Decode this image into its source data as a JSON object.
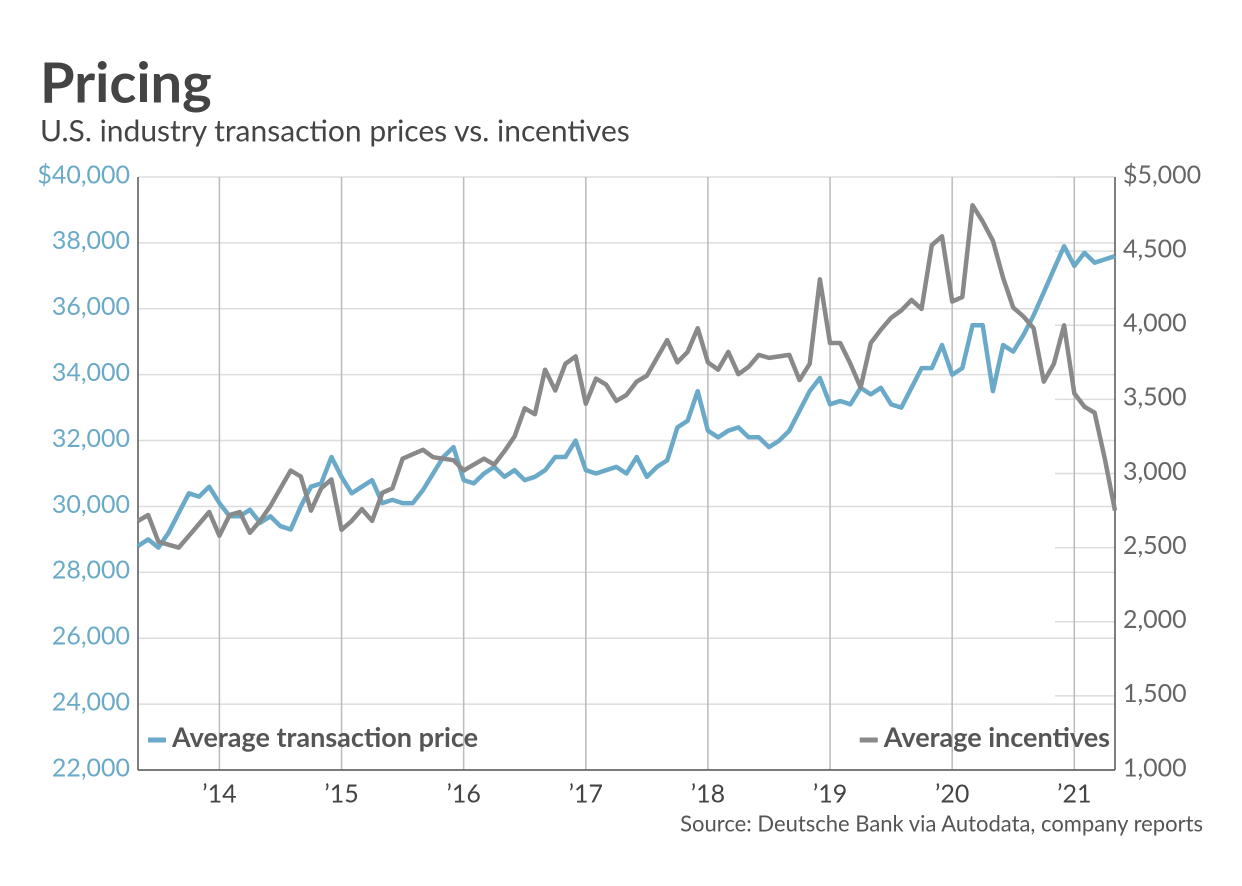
{
  "chart_data": {
    "type": "line",
    "title": "Pricing",
    "subtitle": "U.S. industry transaction prices vs. incentives",
    "source": "Source: Deutsche Bank via Autodata, company reports",
    "categories": [
      null,
      null,
      null,
      null,
      null,
      null,
      null,
      null,
      "’14",
      null,
      null,
      null,
      null,
      null,
      null,
      null,
      null,
      null,
      null,
      null,
      "’15",
      null,
      null,
      null,
      null,
      null,
      null,
      null,
      null,
      null,
      null,
      null,
      "’16",
      null,
      null,
      null,
      null,
      null,
      null,
      null,
      null,
      null,
      null,
      null,
      "’17",
      null,
      null,
      null,
      null,
      null,
      null,
      null,
      null,
      null,
      null,
      null,
      "’18",
      null,
      null,
      null,
      null,
      null,
      null,
      null,
      null,
      null,
      null,
      null,
      "’19",
      null,
      null,
      null,
      null,
      null,
      null,
      null,
      null,
      null,
      null,
      null,
      "’20",
      null,
      null,
      null,
      null,
      null,
      null,
      null,
      null,
      null,
      null,
      null,
      "’21",
      null,
      null,
      null,
      null
    ],
    "series": [
      {
        "name": "Average transaction price",
        "color": "#6aaac8",
        "axis": "y",
        "values": [
          28800,
          29000,
          28750,
          29200,
          29800,
          30400,
          30300,
          30600,
          30100,
          29700,
          29700,
          29900,
          29500,
          29700,
          29400,
          29300,
          30000,
          30600,
          30700,
          31500,
          30900,
          30400,
          30600,
          30800,
          30100,
          30200,
          30100,
          30100,
          30500,
          31000,
          31500,
          31800,
          30800,
          30700,
          31000,
          31200,
          30900,
          31100,
          30800,
          30900,
          31100,
          31500,
          31500,
          32000,
          31100,
          31000,
          31100,
          31200,
          31000,
          31500,
          30900,
          31200,
          31400,
          32400,
          32600,
          33500,
          32300,
          32100,
          32300,
          32400,
          32100,
          32100,
          31800,
          32000,
          32300,
          32900,
          33500,
          33900,
          33100,
          33200,
          33100,
          33600,
          33400,
          33600,
          33100,
          33000,
          33600,
          34200,
          34200,
          34900,
          34000,
          34200,
          35500,
          35500,
          33500,
          34900,
          34700,
          35200,
          35800,
          36500,
          37200,
          37900,
          37300,
          37700,
          37400,
          37500,
          37600
        ]
      },
      {
        "name": "Average incentives",
        "color": "#898989",
        "axis": "y2",
        "values": [
          2680,
          2720,
          2540,
          2520,
          2500,
          2580,
          2660,
          2740,
          2580,
          2720,
          2740,
          2600,
          2680,
          2780,
          2900,
          3020,
          2980,
          2750,
          2900,
          2960,
          2620,
          2680,
          2760,
          2680,
          2870,
          2900,
          3100,
          3130,
          3160,
          3110,
          3100,
          3090,
          3020,
          3060,
          3100,
          3060,
          3150,
          3250,
          3440,
          3400,
          3700,
          3560,
          3740,
          3790,
          3470,
          3640,
          3600,
          3490,
          3530,
          3620,
          3660,
          3780,
          3900,
          3750,
          3820,
          3980,
          3750,
          3700,
          3820,
          3670,
          3720,
          3800,
          3780,
          3790,
          3800,
          3630,
          3740,
          4310,
          3880,
          3880,
          3740,
          3580,
          3880,
          3970,
          4050,
          4100,
          4170,
          4110,
          4540,
          4600,
          4160,
          4190,
          4810,
          4700,
          4570,
          4320,
          4120,
          4060,
          3980,
          3620,
          3740,
          4000,
          3540,
          3450,
          3410,
          3100,
          2750
        ]
      }
    ],
    "ylim": [
      22000,
      40000
    ],
    "yticks": [
      {
        "value": 22000,
        "label": "22,000"
      },
      {
        "value": 24000,
        "label": "24,000"
      },
      {
        "value": 26000,
        "label": "26,000"
      },
      {
        "value": 28000,
        "label": "28,000"
      },
      {
        "value": 30000,
        "label": "30,000"
      },
      {
        "value": 32000,
        "label": "32,000"
      },
      {
        "value": 34000,
        "label": "34,000"
      },
      {
        "value": 36000,
        "label": "36,000"
      },
      {
        "value": 38000,
        "label": "38,000"
      },
      {
        "value": 40000,
        "label": "$40,000"
      }
    ],
    "y2lim": [
      1000,
      5000
    ],
    "y2ticks": [
      {
        "value": 1000,
        "label": "1,000"
      },
      {
        "value": 1500,
        "label": "1,500"
      },
      {
        "value": 2000,
        "label": "2,000"
      },
      {
        "value": 2500,
        "label": "2,500"
      },
      {
        "value": 3000,
        "label": "3,000"
      },
      {
        "value": 3500,
        "label": "3,500"
      },
      {
        "value": 4000,
        "label": "4,000"
      },
      {
        "value": 4500,
        "label": "4,500"
      },
      {
        "value": 5000,
        "label": "$5,000"
      }
    ],
    "grid": true
  }
}
